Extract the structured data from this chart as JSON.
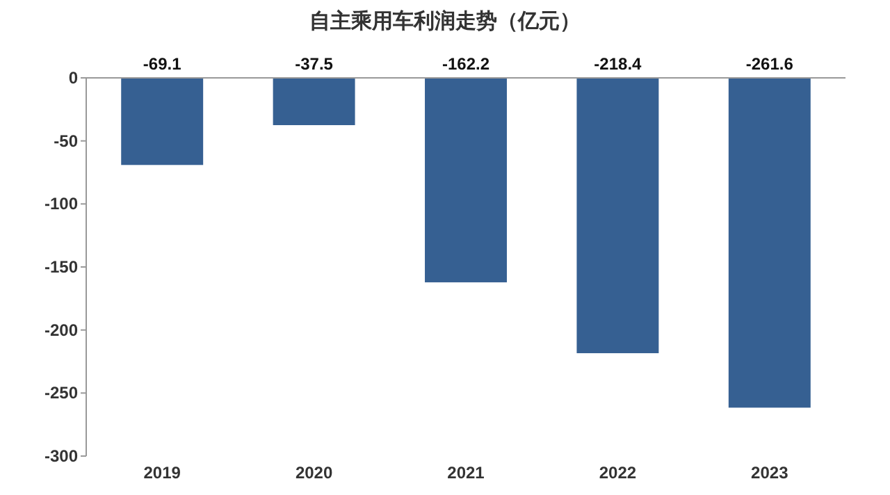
{
  "chart_data": {
    "type": "bar",
    "title": "自主乘用车利润走势（亿元）",
    "categories": [
      "2019",
      "2020",
      "2021",
      "2022",
      "2023"
    ],
    "values": [
      -69.1,
      -37.5,
      -162.2,
      -218.4,
      -261.6
    ],
    "color": "#366092",
    "ylim": [
      -300,
      0
    ],
    "yticks": [
      0,
      -50,
      -100,
      -150,
      -200,
      -250,
      -300
    ],
    "data_labels": true
  }
}
